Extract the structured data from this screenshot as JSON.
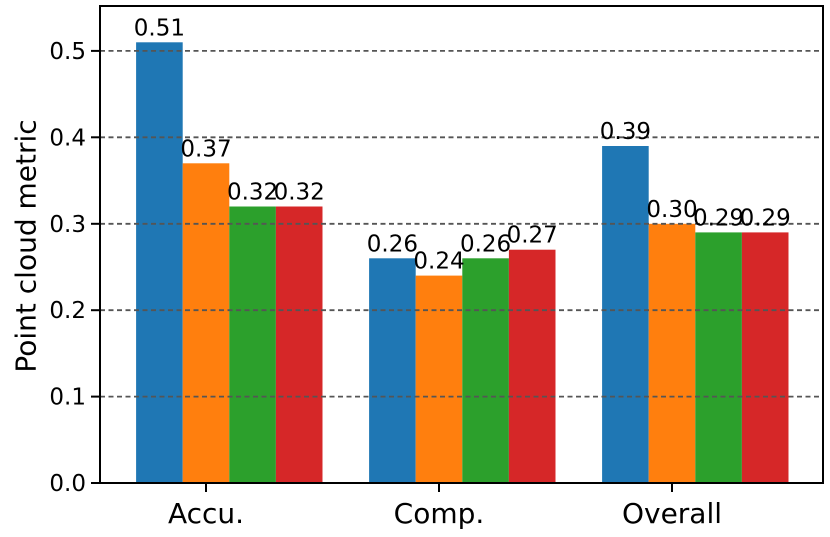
{
  "chart_data": {
    "type": "bar",
    "title": "",
    "xlabel": "",
    "ylabel": "Point cloud metric",
    "categories": [
      "Accu.",
      "Comp.",
      "Overall"
    ],
    "series": [
      {
        "name": "series-blue",
        "color": "#1f77b4",
        "values": [
          0.51,
          0.26,
          0.39
        ],
        "labels": [
          "0.51",
          "0.26",
          "0.39"
        ]
      },
      {
        "name": "series-orange",
        "color": "#ff7f0e",
        "values": [
          0.37,
          0.24,
          0.3
        ],
        "labels": [
          "0.37",
          "0.24",
          "0.30"
        ]
      },
      {
        "name": "series-green",
        "color": "#2ca02c",
        "values": [
          0.32,
          0.26,
          0.29
        ],
        "labels": [
          "0.32",
          "0.26",
          "0.29"
        ]
      },
      {
        "name": "series-red",
        "color": "#d62728",
        "values": [
          0.32,
          0.27,
          0.29
        ],
        "labels": [
          "0.32",
          "0.27",
          "0.29"
        ]
      }
    ],
    "yticks": [
      "0.0",
      "0.1",
      "0.2",
      "0.3",
      "0.4",
      "0.5"
    ],
    "ylim": [
      0,
      0.552
    ],
    "grid": {
      "axis": "y",
      "linestyle": "dashed",
      "color": "#555555",
      "drawn_above_bars": true
    },
    "legend": "none",
    "background": "#ffffff",
    "axis_color": "#000000"
  }
}
